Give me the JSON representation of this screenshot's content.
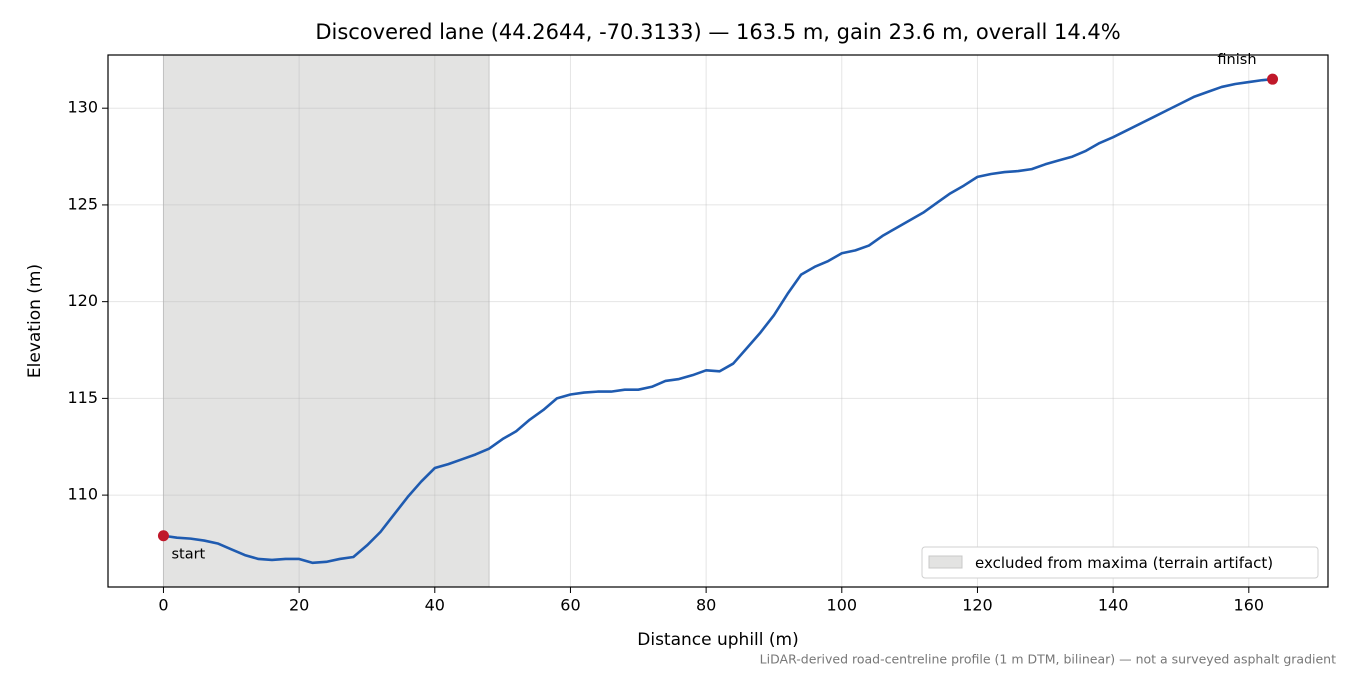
{
  "chart_data": {
    "type": "line",
    "title": "Discovered lane (44.2644, -70.3133) — 163.5 m, gain 23.6 m, overall 14.4%",
    "x_label": "Distance uphill (m)",
    "y_label": "Elevation (m)",
    "footnote": "LiDAR-derived road-centreline profile (1 m DTM, bilinear) — not a surveyed asphalt gradient",
    "x": [
      0,
      2,
      4,
      6,
      8,
      10,
      12,
      14,
      16,
      18,
      20,
      22,
      24,
      26,
      28,
      30,
      32,
      34,
      36,
      38,
      40,
      42,
      44,
      46,
      48,
      50,
      52,
      54,
      56,
      58,
      60,
      62,
      64,
      66,
      68,
      70,
      72,
      74,
      76,
      78,
      80,
      82,
      84,
      86,
      88,
      90,
      92,
      94,
      96,
      98,
      100,
      102,
      104,
      106,
      108,
      110,
      112,
      114,
      116,
      118,
      120,
      122,
      124,
      126,
      128,
      130,
      132,
      134,
      136,
      138,
      140,
      142,
      144,
      146,
      148,
      150,
      152,
      154,
      156,
      158,
      160,
      162,
      163.5
    ],
    "series": [
      {
        "color": "#1f5bb0",
        "values": [
          107.9,
          107.8,
          107.75,
          107.65,
          107.5,
          107.2,
          106.9,
          106.7,
          106.65,
          106.7,
          106.7,
          106.5,
          106.55,
          106.7,
          106.8,
          107.4,
          108.1,
          109.0,
          109.9,
          110.7,
          111.4,
          111.6,
          111.85,
          112.1,
          112.4,
          112.9,
          113.3,
          113.9,
          114.4,
          115.0,
          115.2,
          115.3,
          115.35,
          115.35,
          115.45,
          115.45,
          115.6,
          115.9,
          116.0,
          116.2,
          116.45,
          116.4,
          116.8,
          117.6,
          118.4,
          119.3,
          120.4,
          121.4,
          121.8,
          122.1,
          122.5,
          122.65,
          122.9,
          123.4,
          123.8,
          124.2,
          124.6,
          125.1,
          125.6,
          126.0,
          126.45,
          126.6,
          126.7,
          126.75,
          126.85,
          127.1,
          127.3,
          127.5,
          127.8,
          128.2,
          128.5,
          128.85,
          129.2,
          129.55,
          129.9,
          130.25,
          130.6,
          130.85,
          131.1,
          131.25,
          131.35,
          131.45,
          131.5
        ]
      }
    ],
    "points": [
      {
        "text": "start",
        "x": 0,
        "y": 107.9,
        "color": "#c0182a"
      },
      {
        "text": "finish",
        "x": 163.5,
        "y": 131.5,
        "color": "#c0182a"
      }
    ],
    "shaded": {
      "xmin": 0,
      "xmax": 48,
      "color": "#e3e3e2",
      "label": "excluded from maxima (terrain artifact)"
    },
    "xlim": [
      -8.175,
      171.675
    ],
    "ylim": [
      105.25,
      132.75
    ],
    "xticks": [
      0,
      20,
      40,
      60,
      80,
      100,
      120,
      140,
      160
    ],
    "yticks": [
      110,
      115,
      120,
      125,
      130
    ],
    "grid": true,
    "legend": "lower right"
  }
}
